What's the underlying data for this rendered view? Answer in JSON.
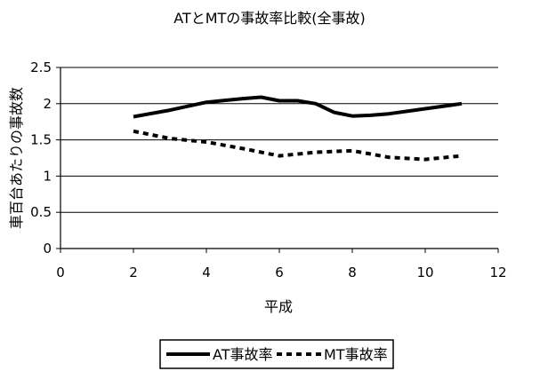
{
  "chart_data": {
    "type": "line",
    "title": "ATとMTの事故率比較(全事故)",
    "xlabel": "平成",
    "ylabel": "車百台あたりの事故数",
    "xlim": [
      0,
      12
    ],
    "ylim": [
      0,
      2.5
    ],
    "x_ticks": [
      "0",
      "2",
      "4",
      "6",
      "8",
      "10",
      "12"
    ],
    "y_ticks": [
      "0",
      "0.5",
      "1",
      "1.5",
      "2",
      "2.5"
    ],
    "grid": "horizontal",
    "legend_position": "bottom",
    "series": [
      {
        "name": "AT事故率",
        "style": "solid",
        "color": "#000000",
        "x": [
          2,
          3,
          4,
          5,
          5.5,
          6,
          6.5,
          7,
          7.5,
          8,
          8.5,
          9,
          10,
          11
        ],
        "y": [
          1.82,
          1.91,
          2.02,
          2.07,
          2.09,
          2.04,
          2.04,
          2.0,
          1.88,
          1.83,
          1.84,
          1.86,
          1.93,
          2.0
        ]
      },
      {
        "name": "MT事故率",
        "style": "dashed",
        "color": "#000000",
        "x": [
          2,
          3,
          4,
          5,
          6,
          7,
          8,
          9,
          10,
          11
        ],
        "y": [
          1.62,
          1.52,
          1.47,
          1.38,
          1.28,
          1.33,
          1.35,
          1.26,
          1.23,
          1.28
        ]
      }
    ]
  }
}
